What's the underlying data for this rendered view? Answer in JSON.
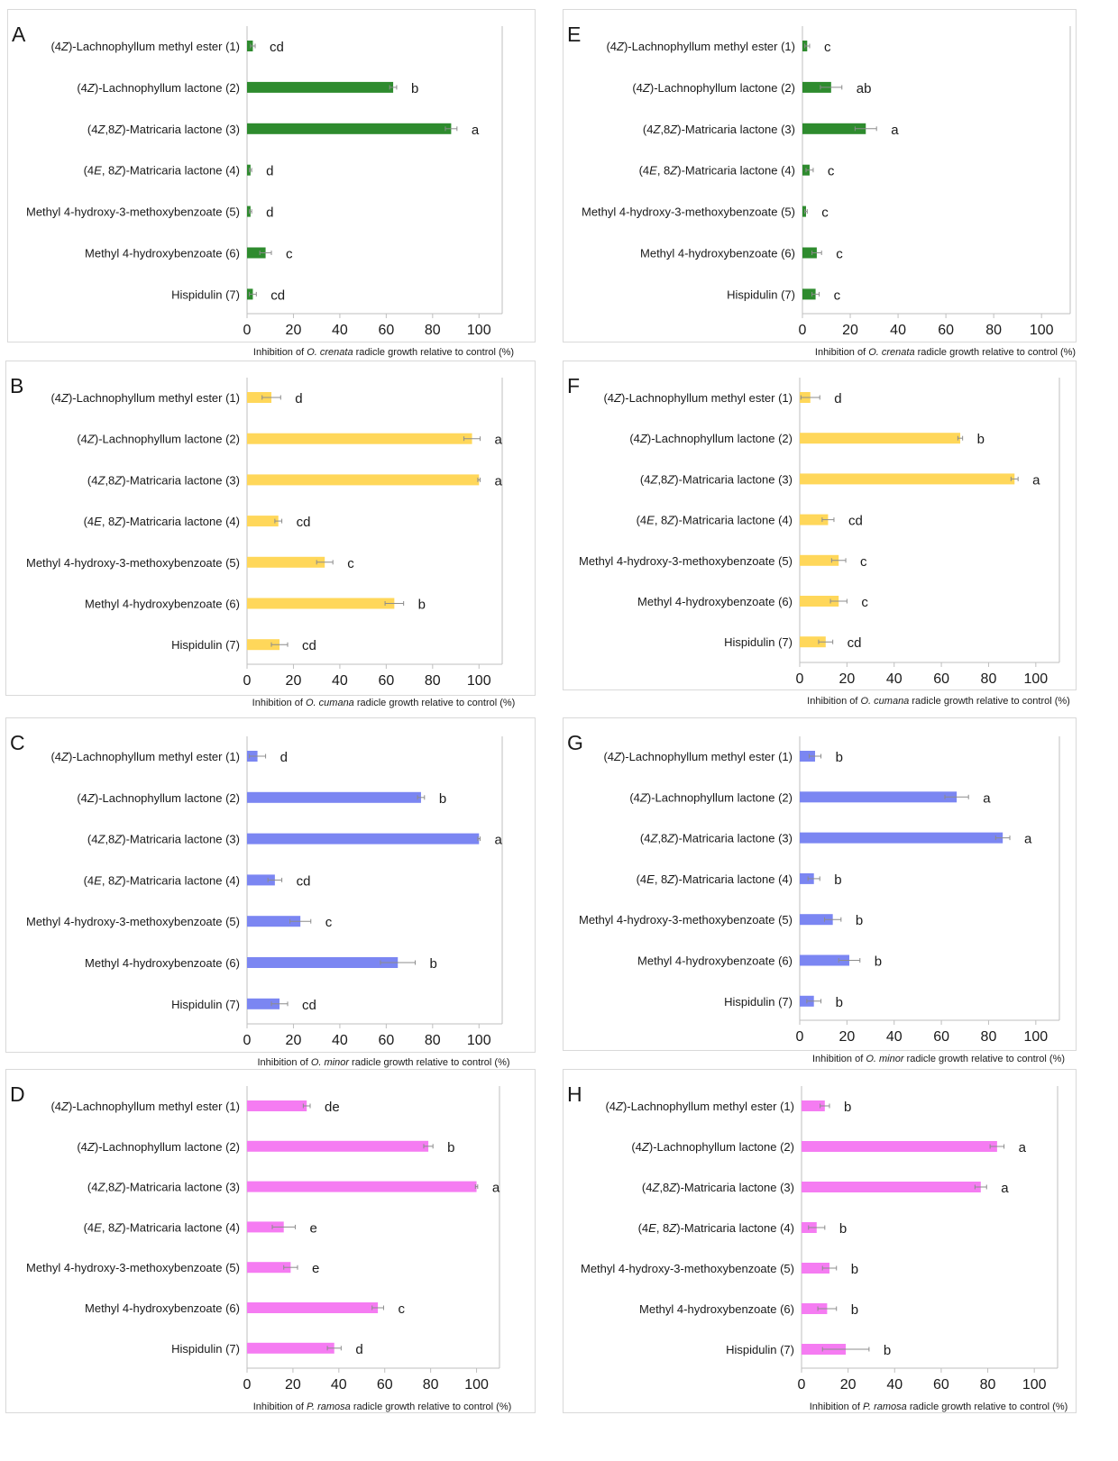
{
  "colors": {
    "crenata": "#2e8b2e",
    "cumana": "#ffd75a",
    "minor": "#7b86f2",
    "ramosa": "#f57cf2",
    "errorbar": "#8c8c8c",
    "axis": "#bfbfbf"
  },
  "chart_data": [
    {
      "panel": "A",
      "type": "bar",
      "orientation": "horizontal",
      "color_key": "crenata",
      "categories": [
        "(4Z)-Lachnophyllum methyl ester (1)",
        "(4Z)-Lachnophyllum lactone (2)",
        "(4Z,8Z)-Matricaria lactone (3)",
        "(4E, 8Z)-Matricaria lactone (4)",
        "Methyl 4-hydroxy-3-methoxybenzoate (5)",
        "Methyl 4-hydroxybenzoate (6)",
        "Hispidulin (7)"
      ],
      "values": [
        2.5,
        63,
        88,
        1.5,
        1.5,
        8,
        2.5
      ],
      "errors": [
        1,
        1.5,
        2.5,
        0.5,
        0.5,
        2.5,
        1.5
      ],
      "letters": [
        "cd",
        "b",
        "a",
        "d",
        "d",
        "c",
        "cd"
      ],
      "xticks": [
        "0",
        "20",
        "40",
        "60",
        "80",
        "100"
      ],
      "xlim": [
        0,
        110
      ],
      "xlabel": "Inhibition of O. crenata radicle growth relative to control (%)"
    },
    {
      "panel": "B",
      "type": "bar",
      "orientation": "horizontal",
      "color_key": "cumana",
      "categories": [
        "(4Z)-Lachnophyllum methyl ester (1)",
        "(4Z)-Lachnophyllum lactone (2)",
        "(4Z,8Z)-Matricaria lactone (3)",
        "(4E, 8Z)-Matricaria lactone (4)",
        "Methyl 4-hydroxy-3-methoxybenzoate (5)",
        "Methyl 4-hydroxybenzoate (6)",
        "Hispidulin (7)"
      ],
      "values": [
        10.5,
        97,
        100,
        13.5,
        33.5,
        63.5,
        14
      ],
      "errors": [
        4,
        3.5,
        0.5,
        1.5,
        3.5,
        4,
        3.5
      ],
      "letters": [
        "d",
        "a",
        "a",
        "cd",
        "c",
        "b",
        "cd"
      ],
      "xticks": [
        "0",
        "20",
        "40",
        "60",
        "80",
        "100"
      ],
      "xlim": [
        0,
        110
      ],
      "xlabel": "Inhibition of O. cumana radicle growth relative to control (%)"
    },
    {
      "panel": "C",
      "type": "bar",
      "orientation": "horizontal",
      "color_key": "minor",
      "categories": [
        "(4Z)-Lachnophyllum methyl ester (1)",
        "(4Z)-Lachnophyllum lactone (2)",
        "(4Z,8Z)-Matricaria lactone (3)",
        "(4E, 8Z)-Matricaria lactone (4)",
        "Methyl 4-hydroxy-3-methoxybenzoate (5)",
        "Methyl 4-hydroxybenzoate (6)",
        "Hispidulin (7)"
      ],
      "values": [
        4.5,
        75,
        100,
        12,
        23,
        65,
        14
      ],
      "errors": [
        3.5,
        1.5,
        0.5,
        3,
        4.5,
        7.5,
        3.5
      ],
      "letters": [
        "d",
        "b",
        "a",
        "cd",
        "c",
        "b",
        "cd"
      ],
      "xticks": [
        "0",
        "20",
        "40",
        "60",
        "80",
        "100"
      ],
      "xlim": [
        0,
        110
      ],
      "xlabel": "Inhibition of O. minor radicle growth relative to control (%)"
    },
    {
      "panel": "D",
      "type": "bar",
      "orientation": "horizontal",
      "color_key": "ramosa",
      "categories": [
        "(4Z)-Lachnophyllum methyl ester (1)",
        "(4Z)-Lachnophyllum lactone (2)",
        "(4Z,8Z)-Matricaria lactone (3)",
        "(4E, 8Z)-Matricaria lactone (4)",
        "Methyl 4-hydroxy-3-methoxybenzoate (5)",
        "Methyl 4-hydroxybenzoate (6)",
        "Hispidulin (7)"
      ],
      "values": [
        26,
        79,
        100,
        16,
        19,
        57,
        38
      ],
      "errors": [
        1.5,
        2,
        0.5,
        5,
        3,
        2.5,
        3
      ],
      "letters": [
        "de",
        "b",
        "a",
        "e",
        "e",
        "c",
        "d"
      ],
      "xticks": [
        "0",
        "20",
        "40",
        "60",
        "80",
        "100"
      ],
      "xlim": [
        0,
        110
      ],
      "xlabel": "Inhibition of P. ramosa radicle growth relative to control (%)"
    },
    {
      "panel": "E",
      "type": "bar",
      "orientation": "horizontal",
      "color_key": "crenata",
      "categories": [
        "(4Z)-Lachnophyllum methyl ester (1)",
        "(4Z)-Lachnophyllum lactone (2)",
        "(4Z,8Z)-Matricaria lactone (3)",
        "(4E, 8Z)-Matricaria lactone (4)",
        "Methyl 4-hydroxy-3-methoxybenzoate (5)",
        "Methyl 4-hydroxybenzoate (6)",
        "Hispidulin (7)"
      ],
      "values": [
        2,
        12,
        26.5,
        3,
        1.5,
        6,
        5.5
      ],
      "errors": [
        1,
        4.5,
        4.5,
        1.5,
        0.5,
        2,
        1.5
      ],
      "letters": [
        "c",
        "ab",
        "a",
        "c",
        "c",
        "c",
        "c"
      ],
      "xticks": [
        "0",
        "20",
        "40",
        "60",
        "80",
        "100"
      ],
      "xlim": [
        0,
        112
      ],
      "xlabel": "Inhibition of O. crenata radicle growth relative to control (%)"
    },
    {
      "panel": "F",
      "type": "bar",
      "orientation": "horizontal",
      "color_key": "cumana",
      "categories": [
        "(4Z)-Lachnophyllum methyl ester (1)",
        "(4Z)-Lachnophyllum lactone (2)",
        "(4Z,8Z)-Matricaria lactone (3)",
        "(4E, 8Z)-Matricaria lactone (4)",
        "Methyl 4-hydroxy-3-methoxybenzoate (5)",
        "Methyl 4-hydroxybenzoate (6)",
        "Hispidulin (7)"
      ],
      "values": [
        4.5,
        68,
        91,
        12,
        16.5,
        16.5,
        11
      ],
      "errors": [
        4,
        1,
        1.5,
        2.5,
        3,
        3.5,
        3
      ],
      "letters": [
        "d",
        "b",
        "a",
        "cd",
        "c",
        "c",
        "cd"
      ],
      "xticks": [
        "0",
        "20",
        "40",
        "60",
        "80",
        "100"
      ],
      "xlim": [
        0,
        110
      ],
      "xlabel": "Inhibition of O. cumana radicle growth relative to control (%)"
    },
    {
      "panel": "G",
      "type": "bar",
      "orientation": "horizontal",
      "color_key": "minor",
      "categories": [
        "(4Z)-Lachnophyllum methyl ester (1)",
        "(4Z)-Lachnophyllum lactone (2)",
        "(4Z,8Z)-Matricaria lactone (3)",
        "(4E, 8Z)-Matricaria lactone (4)",
        "Methyl 4-hydroxy-3-methoxybenzoate (5)",
        "Methyl 4-hydroxybenzoate (6)",
        "Hispidulin (7)"
      ],
      "values": [
        6.5,
        66.5,
        86,
        6,
        14,
        21,
        6
      ],
      "errors": [
        2.5,
        5,
        3,
        2.5,
        3.5,
        4.5,
        3
      ],
      "letters": [
        "b",
        "a",
        "a",
        "b",
        "b",
        "b",
        "b"
      ],
      "xticks": [
        "0",
        "20",
        "40",
        "60",
        "80",
        "100"
      ],
      "xlim": [
        0,
        110
      ],
      "xlabel": "Inhibition of O. minor radicle growth relative to control (%)"
    },
    {
      "panel": "H",
      "type": "bar",
      "orientation": "horizontal",
      "color_key": "ramosa",
      "categories": [
        "(4Z)-Lachnophyllum methyl ester (1)",
        "(4Z)-Lachnophyllum lactone (2)",
        "(4Z,8Z)-Matricaria lactone (3)",
        "(4E, 8Z)-Matricaria lactone (4)",
        "Methyl 4-hydroxy-3-methoxybenzoate (5)",
        "Methyl 4-hydroxybenzoate (6)",
        "Hispidulin (7)"
      ],
      "values": [
        10,
        84,
        77,
        6.5,
        12,
        11,
        19
      ],
      "errors": [
        2,
        3,
        2.5,
        3.5,
        3,
        4,
        10
      ],
      "letters": [
        "b",
        "a",
        "a",
        "b",
        "b",
        "b",
        "b"
      ],
      "xticks": [
        "0",
        "20",
        "40",
        "60",
        "80",
        "100"
      ],
      "xlim": [
        0,
        110
      ],
      "xlabel": "Inhibition of P. ramosa radicle growth relative to control (%)"
    }
  ]
}
